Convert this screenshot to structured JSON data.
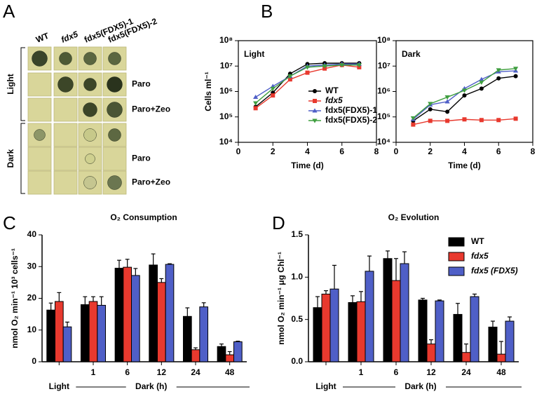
{
  "panel_labels": [
    "A",
    "B",
    "C",
    "D"
  ],
  "panel_a": {
    "columns": [
      {
        "text": "WT",
        "color": "#000000"
      },
      {
        "text": "fdx5",
        "color": "#e8392e"
      },
      {
        "text": "fdx5(FDX5)-1",
        "color": "#4f5fc7"
      },
      {
        "text": "fdx5(FDX5)-2",
        "color": "#3f9e3f"
      }
    ],
    "groups": [
      "Light",
      "Dark"
    ],
    "row_labels": [
      "Paro",
      "Paro+Zeo",
      "Paro",
      "Paro+Zeo"
    ]
  },
  "chart_data": [
    {
      "type": "line",
      "title": "Light",
      "ylabel": "Cells ml⁻¹",
      "xlabel": "Time (d)",
      "x": [
        1,
        2,
        3,
        4,
        5,
        6,
        7
      ],
      "xlim": [
        0,
        8
      ],
      "xticks": [
        0,
        2,
        4,
        6,
        8
      ],
      "ylim": [
        10000,
        100000000
      ],
      "log_scale": true,
      "yticks": [
        {
          "value": 10000,
          "label": "10⁴"
        },
        {
          "value": 100000,
          "label": "10⁵"
        },
        {
          "value": 1000000,
          "label": "10⁶"
        },
        {
          "value": 10000000,
          "label": "10⁷"
        },
        {
          "value": 100000000,
          "label": "10⁸"
        }
      ],
      "legend": "center right",
      "series": [
        {
          "name": "WT",
          "color": "#000000",
          "marker": "circle",
          "values": [
            250000,
            900000,
            5000000,
            12000000,
            13000000,
            13000000,
            13000000
          ]
        },
        {
          "name": "fdx5",
          "color": "#e8392e",
          "marker": "square",
          "values": [
            220000,
            700000,
            3000000,
            5500000,
            8000000,
            11000000,
            9000000
          ]
        },
        {
          "name": "fdx5(FDX5)-1",
          "color": "#4f5fc7",
          "marker": "triangle-up",
          "values": [
            600000,
            1600000,
            4000000,
            10000000,
            11000000,
            12000000,
            12000000
          ]
        },
        {
          "name": "fdx5(FDX5)-2",
          "color": "#3f9e3f",
          "marker": "triangle-down",
          "values": [
            350000,
            1300000,
            4000000,
            9000000,
            10000000,
            11000000,
            11000000
          ]
        }
      ]
    },
    {
      "type": "line",
      "title": "Dark",
      "xlabel": "Time (d)",
      "x": [
        1,
        2,
        3,
        4,
        5,
        6,
        7
      ],
      "xlim": [
        0,
        8
      ],
      "xticks": [
        0,
        2,
        4,
        6,
        8
      ],
      "ylim": [
        10000,
        100000000
      ],
      "log_scale": true,
      "yticks": [
        {
          "value": 10000,
          "label": "10⁴"
        },
        {
          "value": 100000,
          "label": "10⁵"
        },
        {
          "value": 1000000,
          "label": "10⁶"
        },
        {
          "value": 10000000,
          "label": "10⁷"
        },
        {
          "value": 100000000,
          "label": "10⁸"
        }
      ],
      "series": [
        {
          "color": "#000000",
          "marker": "circle",
          "values": [
            70000,
            200000,
            160000,
            700000,
            1300000,
            3300000,
            4000000
          ]
        },
        {
          "color": "#e8392e",
          "marker": "square",
          "values": [
            50000,
            70000,
            70000,
            80000,
            75000,
            75000,
            85000
          ]
        },
        {
          "color": "#4f5fc7",
          "marker": "triangle-up",
          "values": [
            80000,
            300000,
            400000,
            1300000,
            3000000,
            6000000,
            6500000
          ]
        },
        {
          "color": "#3f9e3f",
          "marker": "triangle-down",
          "values": [
            90000,
            330000,
            600000,
            1100000,
            2300000,
            7000000,
            8000000
          ]
        }
      ]
    },
    {
      "type": "bar",
      "title": "O₂ Consumption",
      "ylabel": "nmol O₂ min⁻¹ 10³ cells⁻¹",
      "categories": [
        null,
        "1",
        "6",
        "12",
        "24",
        "48"
      ],
      "x_groups": [
        "Light",
        "Dark (h)"
      ],
      "ylim": [
        0,
        40
      ],
      "yticks": [
        0,
        10,
        20,
        30,
        40
      ],
      "series": [
        {
          "color": "#000000",
          "values": [
            16.3,
            18,
            29.5,
            30.5,
            14.3,
            4.8
          ],
          "errors": [
            2.2,
            2.5,
            2.5,
            3.5,
            2.7,
            0.8
          ]
        },
        {
          "color": "#e8392e",
          "values": [
            19,
            19,
            29.8,
            25,
            3.8,
            2.2
          ],
          "errors": [
            2.8,
            1.5,
            2.5,
            1.2,
            0.6,
            1.0
          ]
        },
        {
          "color": "#4f5fc7",
          "values": [
            11,
            17.8,
            27.2,
            30.7,
            17.3,
            6.3
          ],
          "errors": [
            1.5,
            2.7,
            2.2,
            0.2,
            1.3,
            0.2
          ]
        }
      ]
    },
    {
      "type": "bar",
      "title": "O₂ Evolution",
      "ylabel": "nmol O₂ min⁻¹ μg Chl⁻¹",
      "categories": [
        null,
        "1",
        "6",
        "12",
        "24",
        "48"
      ],
      "x_groups": [
        "Light",
        "Dark (h)"
      ],
      "ylim": [
        0,
        1.5
      ],
      "yticks": [
        {
          "value": 0,
          "label": "0.0"
        },
        0.5,
        {
          "value": 1,
          "label": "1.0"
        },
        1.5
      ],
      "legend": "upper right",
      "series": [
        {
          "name": "WT",
          "color": "#000000",
          "values": [
            0.64,
            0.7,
            1.22,
            0.73,
            0.56,
            0.41
          ],
          "errors": [
            0.13,
            0.08,
            0.09,
            0.02,
            0.13,
            0.07
          ]
        },
        {
          "name": "fdx5",
          "color": "#e8392e",
          "values": [
            0.8,
            0.71,
            0.96,
            0.21,
            0.11,
            0.09
          ],
          "errors": [
            0.04,
            0.12,
            0.26,
            0.05,
            0.1,
            0.15
          ]
        },
        {
          "name": "fdx5 (FDX5)",
          "color": "#4f5fc7",
          "values": [
            0.86,
            1.07,
            1.16,
            0.72,
            0.77,
            0.48
          ],
          "errors": [
            0.28,
            0.18,
            0.14,
            0.01,
            0.03,
            0.05
          ]
        }
      ]
    }
  ]
}
